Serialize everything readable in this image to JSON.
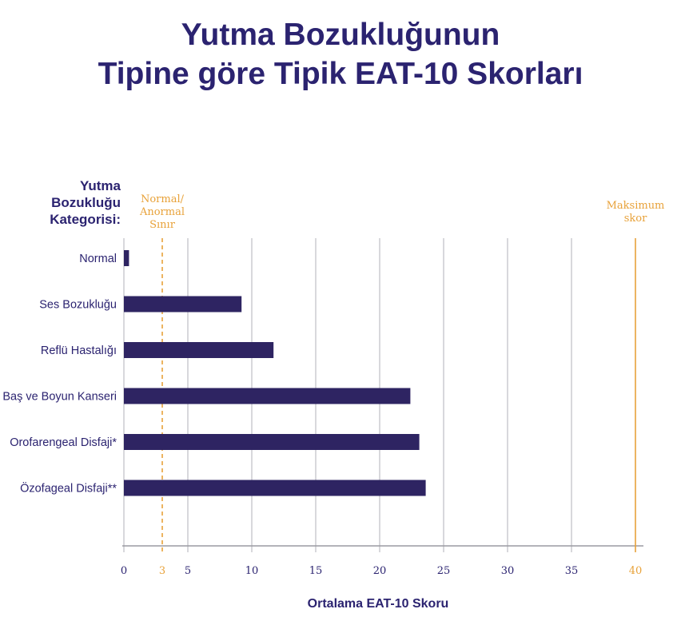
{
  "title": {
    "line1": "Yutma Bozukluğunun",
    "line2": "Tipine göre Tipik EAT-10 Skorları"
  },
  "colors": {
    "title": "#2b2370",
    "bar": "#2e2462",
    "reference": "#e8a23a",
    "grid": "#cfcfd4",
    "axis": "#9a9aa2"
  },
  "chart_data": {
    "type": "bar",
    "orientation": "horizontal",
    "y_header": [
      "Yutma",
      "Bozukluğu",
      "Kategorisi:"
    ],
    "categories": [
      "Normal",
      "Ses Bozukluğu",
      "Reflü Hastalığı",
      "Baş ve Boyun Kanseri",
      "Orofarengeal Disfaji*",
      "Özofageal Disfaji**"
    ],
    "values": [
      0.4,
      9.2,
      11.7,
      22.4,
      23.1,
      23.6
    ],
    "xlabel": "Ortalama EAT-10 Skoru",
    "xlim": [
      0,
      40
    ],
    "xticks": [
      "0",
      "3",
      "5",
      "10",
      "15",
      "20",
      "25",
      "30",
      "35",
      "40"
    ],
    "grid": true,
    "reference_lines": [
      {
        "value": 3,
        "label": [
          "Normal/",
          "Anormal",
          "Sınır"
        ],
        "style": "dashed"
      },
      {
        "value": 40,
        "label": [
          "Maksimum",
          "skor"
        ],
        "style": "solid"
      }
    ]
  }
}
